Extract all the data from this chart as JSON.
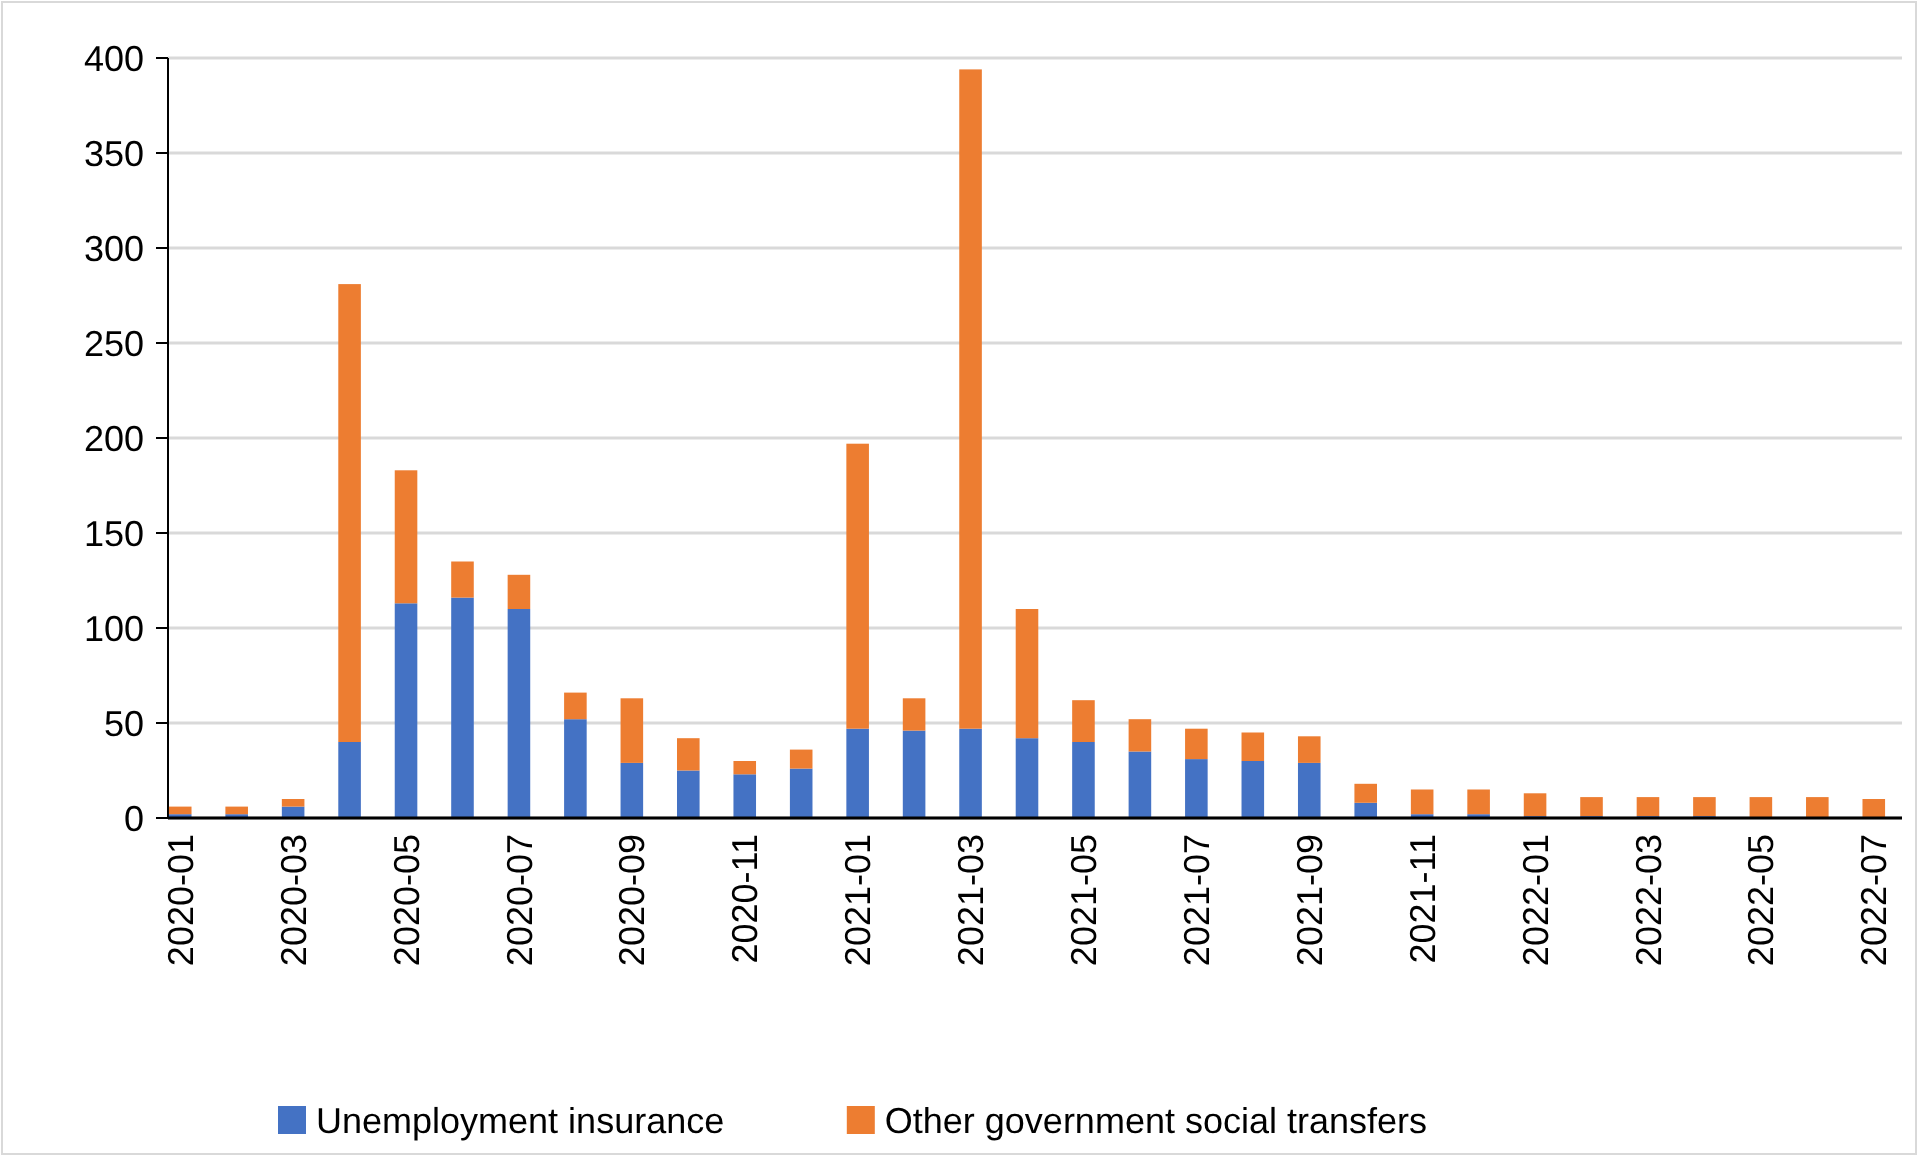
{
  "chart_data": {
    "type": "bar",
    "stacked": true,
    "categories": [
      "2020-01",
      null,
      "2020-03",
      null,
      "2020-05",
      null,
      "2020-07",
      null,
      "2020-09",
      null,
      "2020-11",
      null,
      "2021-01",
      null,
      "2021-03",
      null,
      "2021-05",
      null,
      "2021-07",
      null,
      "2021-09",
      null,
      "2021-11",
      null,
      "2022-01",
      null,
      "2022-03",
      null,
      "2022-05",
      null,
      "2022-07"
    ],
    "series": [
      {
        "name": "Unemployment insurance",
        "color": "#4472c4",
        "values": [
          2,
          2,
          6,
          40,
          113,
          116,
          110,
          52,
          29,
          25,
          23,
          26,
          47,
          46,
          47,
          42,
          40,
          35,
          31,
          30,
          29,
          8,
          2,
          2,
          1,
          1,
          1,
          1,
          0,
          0,
          0
        ]
      },
      {
        "name": "Other government social transfers",
        "color": "#ed7d31",
        "values": [
          4,
          4,
          4,
          241,
          70,
          19,
          18,
          14,
          34,
          17,
          7,
          10,
          150,
          17,
          347,
          68,
          22,
          17,
          16,
          15,
          14,
          10,
          13,
          13,
          12,
          10,
          10,
          10,
          11,
          11,
          10
        ]
      }
    ],
    "ylim": [
      0,
      400
    ],
    "yticks": [
      0,
      50,
      100,
      150,
      200,
      250,
      300,
      350,
      400
    ],
    "grid": "y",
    "legend": "bottom"
  }
}
